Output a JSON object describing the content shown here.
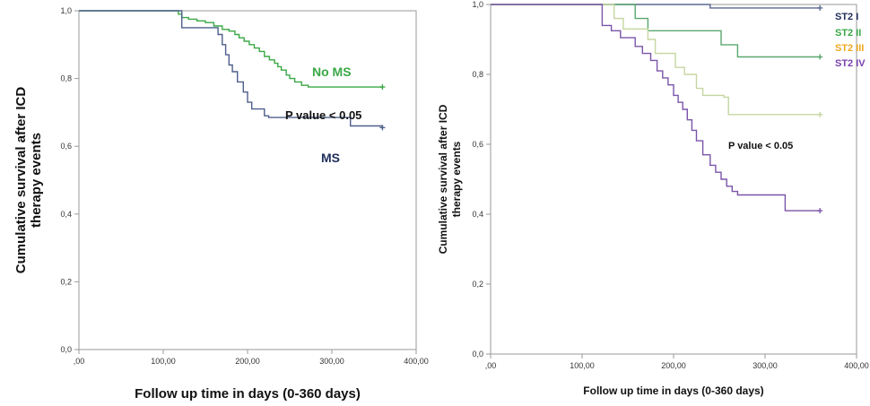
{
  "chart_data": [
    {
      "type": "line",
      "subtype": "kaplan-meier",
      "title": "",
      "xlabel": "Follow up time in days (0-360 days)",
      "ylabel": "Cumulative survival after ICD therapy events",
      "ylabel_lines": [
        "Cumulative survival after ICD",
        "therapy events"
      ],
      "xlim": [
        0,
        400
      ],
      "ylim": [
        0,
        1
      ],
      "x_ticks": [
        0,
        100,
        200,
        300,
        400
      ],
      "x_tick_labels": [
        ",00",
        "100,00",
        "200,00",
        "300,00",
        "400,00"
      ],
      "y_ticks": [
        0,
        0.2,
        0.4,
        0.6,
        0.8,
        1.0
      ],
      "y_tick_labels": [
        "0,0",
        "0,2",
        "0,4",
        "0,6",
        "0,8",
        "1,0"
      ],
      "annotation": "P value < 0.05",
      "series": [
        {
          "name": "No MS",
          "color": "#3aa845",
          "censor_end": true,
          "points": [
            [
              0,
              1.0
            ],
            [
              115,
              1.0
            ],
            [
              118,
              0.99
            ],
            [
              122,
              0.98
            ],
            [
              130,
              0.975
            ],
            [
              140,
              0.97
            ],
            [
              150,
              0.965
            ],
            [
              160,
              0.955
            ],
            [
              170,
              0.945
            ],
            [
              178,
              0.94
            ],
            [
              185,
              0.93
            ],
            [
              190,
              0.92
            ],
            [
              196,
              0.91
            ],
            [
              202,
              0.9
            ],
            [
              208,
              0.89
            ],
            [
              214,
              0.88
            ],
            [
              220,
              0.865
            ],
            [
              226,
              0.855
            ],
            [
              232,
              0.845
            ],
            [
              236,
              0.835
            ],
            [
              240,
              0.825
            ],
            [
              246,
              0.81
            ],
            [
              250,
              0.8
            ],
            [
              256,
              0.79
            ],
            [
              264,
              0.78
            ],
            [
              272,
              0.775
            ],
            [
              360,
              0.775
            ]
          ]
        },
        {
          "name": "MS",
          "color": "#4f5f8c",
          "censor_end": true,
          "points": [
            [
              0,
              1.0
            ],
            [
              118,
              1.0
            ],
            [
              122,
              0.95
            ],
            [
              160,
              0.95
            ],
            [
              165,
              0.93
            ],
            [
              170,
              0.9
            ],
            [
              174,
              0.87
            ],
            [
              178,
              0.84
            ],
            [
              182,
              0.82
            ],
            [
              188,
              0.79
            ],
            [
              195,
              0.76
            ],
            [
              200,
              0.73
            ],
            [
              205,
              0.71
            ],
            [
              210,
              0.71
            ],
            [
              215,
              0.71
            ],
            [
              220,
              0.69
            ],
            [
              225,
              0.685
            ],
            [
              300,
              0.685
            ],
            [
              322,
              0.66
            ],
            [
              360,
              0.655
            ]
          ]
        }
      ],
      "legend_labels": [
        {
          "text": "No MS",
          "color": "#3aa845"
        },
        {
          "text": "MS",
          "color": "#1f2d5c"
        }
      ]
    },
    {
      "type": "line",
      "subtype": "kaplan-meier",
      "title": "",
      "xlabel": "Follow up time in days (0-360 days)",
      "ylabel": "Cumulative survival after ICD therapy events",
      "ylabel_lines": [
        "Cumulative survival after ICD",
        "therapy events"
      ],
      "xlim": [
        0,
        400
      ],
      "ylim": [
        0,
        1
      ],
      "x_ticks": [
        0,
        100,
        200,
        300,
        400
      ],
      "x_tick_labels": [
        ",00",
        "100,00",
        "200,00",
        "300,00",
        "400,00"
      ],
      "y_ticks": [
        0,
        0.2,
        0.4,
        0.6,
        0.8,
        1.0
      ],
      "y_tick_labels": [
        "0,0",
        "0,2",
        "0,4",
        "0,6",
        "0,8",
        "1,0"
      ],
      "annotation": "P value < 0.05",
      "series": [
        {
          "name": "ST2 I",
          "color": "#5a6890",
          "censor_end": true,
          "points": [
            [
              0,
              1.0
            ],
            [
              238,
              1.0
            ],
            [
              240,
              0.99
            ],
            [
              360,
              0.99
            ]
          ]
        },
        {
          "name": "ST2 II",
          "color": "#5aa870",
          "censor_end": true,
          "points": [
            [
              0,
              1.0
            ],
            [
              155,
              1.0
            ],
            [
              158,
              0.96
            ],
            [
              170,
              0.96
            ],
            [
              172,
              0.925
            ],
            [
              250,
              0.925
            ],
            [
              252,
              0.885
            ],
            [
              268,
              0.885
            ],
            [
              270,
              0.85
            ],
            [
              360,
              0.85
            ]
          ]
        },
        {
          "name": "ST2 III",
          "color": "#c5d6a0",
          "censor_end": true,
          "points": [
            [
              0,
              1.0
            ],
            [
              130,
              1.0
            ],
            [
              135,
              0.96
            ],
            [
              145,
              0.93
            ],
            [
              162,
              0.93
            ],
            [
              172,
              0.9
            ],
            [
              180,
              0.86
            ],
            [
              192,
              0.86
            ],
            [
              202,
              0.82
            ],
            [
              212,
              0.8
            ],
            [
              225,
              0.76
            ],
            [
              232,
              0.74
            ],
            [
              255,
              0.735
            ],
            [
              260,
              0.685
            ],
            [
              360,
              0.685
            ]
          ]
        },
        {
          "name": "ST2 IV",
          "color": "#7a55a8",
          "censor_end": true,
          "points": [
            [
              0,
              1.0
            ],
            [
              118,
              1.0
            ],
            [
              122,
              0.94
            ],
            [
              132,
              0.925
            ],
            [
              142,
              0.905
            ],
            [
              150,
              0.905
            ],
            [
              158,
              0.88
            ],
            [
              166,
              0.86
            ],
            [
              175,
              0.84
            ],
            [
              182,
              0.81
            ],
            [
              188,
              0.79
            ],
            [
              194,
              0.77
            ],
            [
              200,
              0.74
            ],
            [
              205,
              0.72
            ],
            [
              210,
              0.7
            ],
            [
              215,
              0.67
            ],
            [
              220,
              0.64
            ],
            [
              225,
              0.61
            ],
            [
              232,
              0.57
            ],
            [
              240,
              0.54
            ],
            [
              246,
              0.52
            ],
            [
              252,
              0.5
            ],
            [
              258,
              0.48
            ],
            [
              264,
              0.465
            ],
            [
              270,
              0.455
            ],
            [
              285,
              0.455
            ],
            [
              315,
              0.455
            ],
            [
              322,
              0.41
            ],
            [
              360,
              0.41
            ]
          ]
        }
      ],
      "legend_labels": [
        {
          "text": "ST2 I",
          "color": "#1f2d5c"
        },
        {
          "text": "ST2 II",
          "color": "#3aa845"
        },
        {
          "text": "ST2 III",
          "color": "#f0a820"
        },
        {
          "text": "ST2 IV",
          "color": "#7a3fb0"
        }
      ]
    }
  ]
}
